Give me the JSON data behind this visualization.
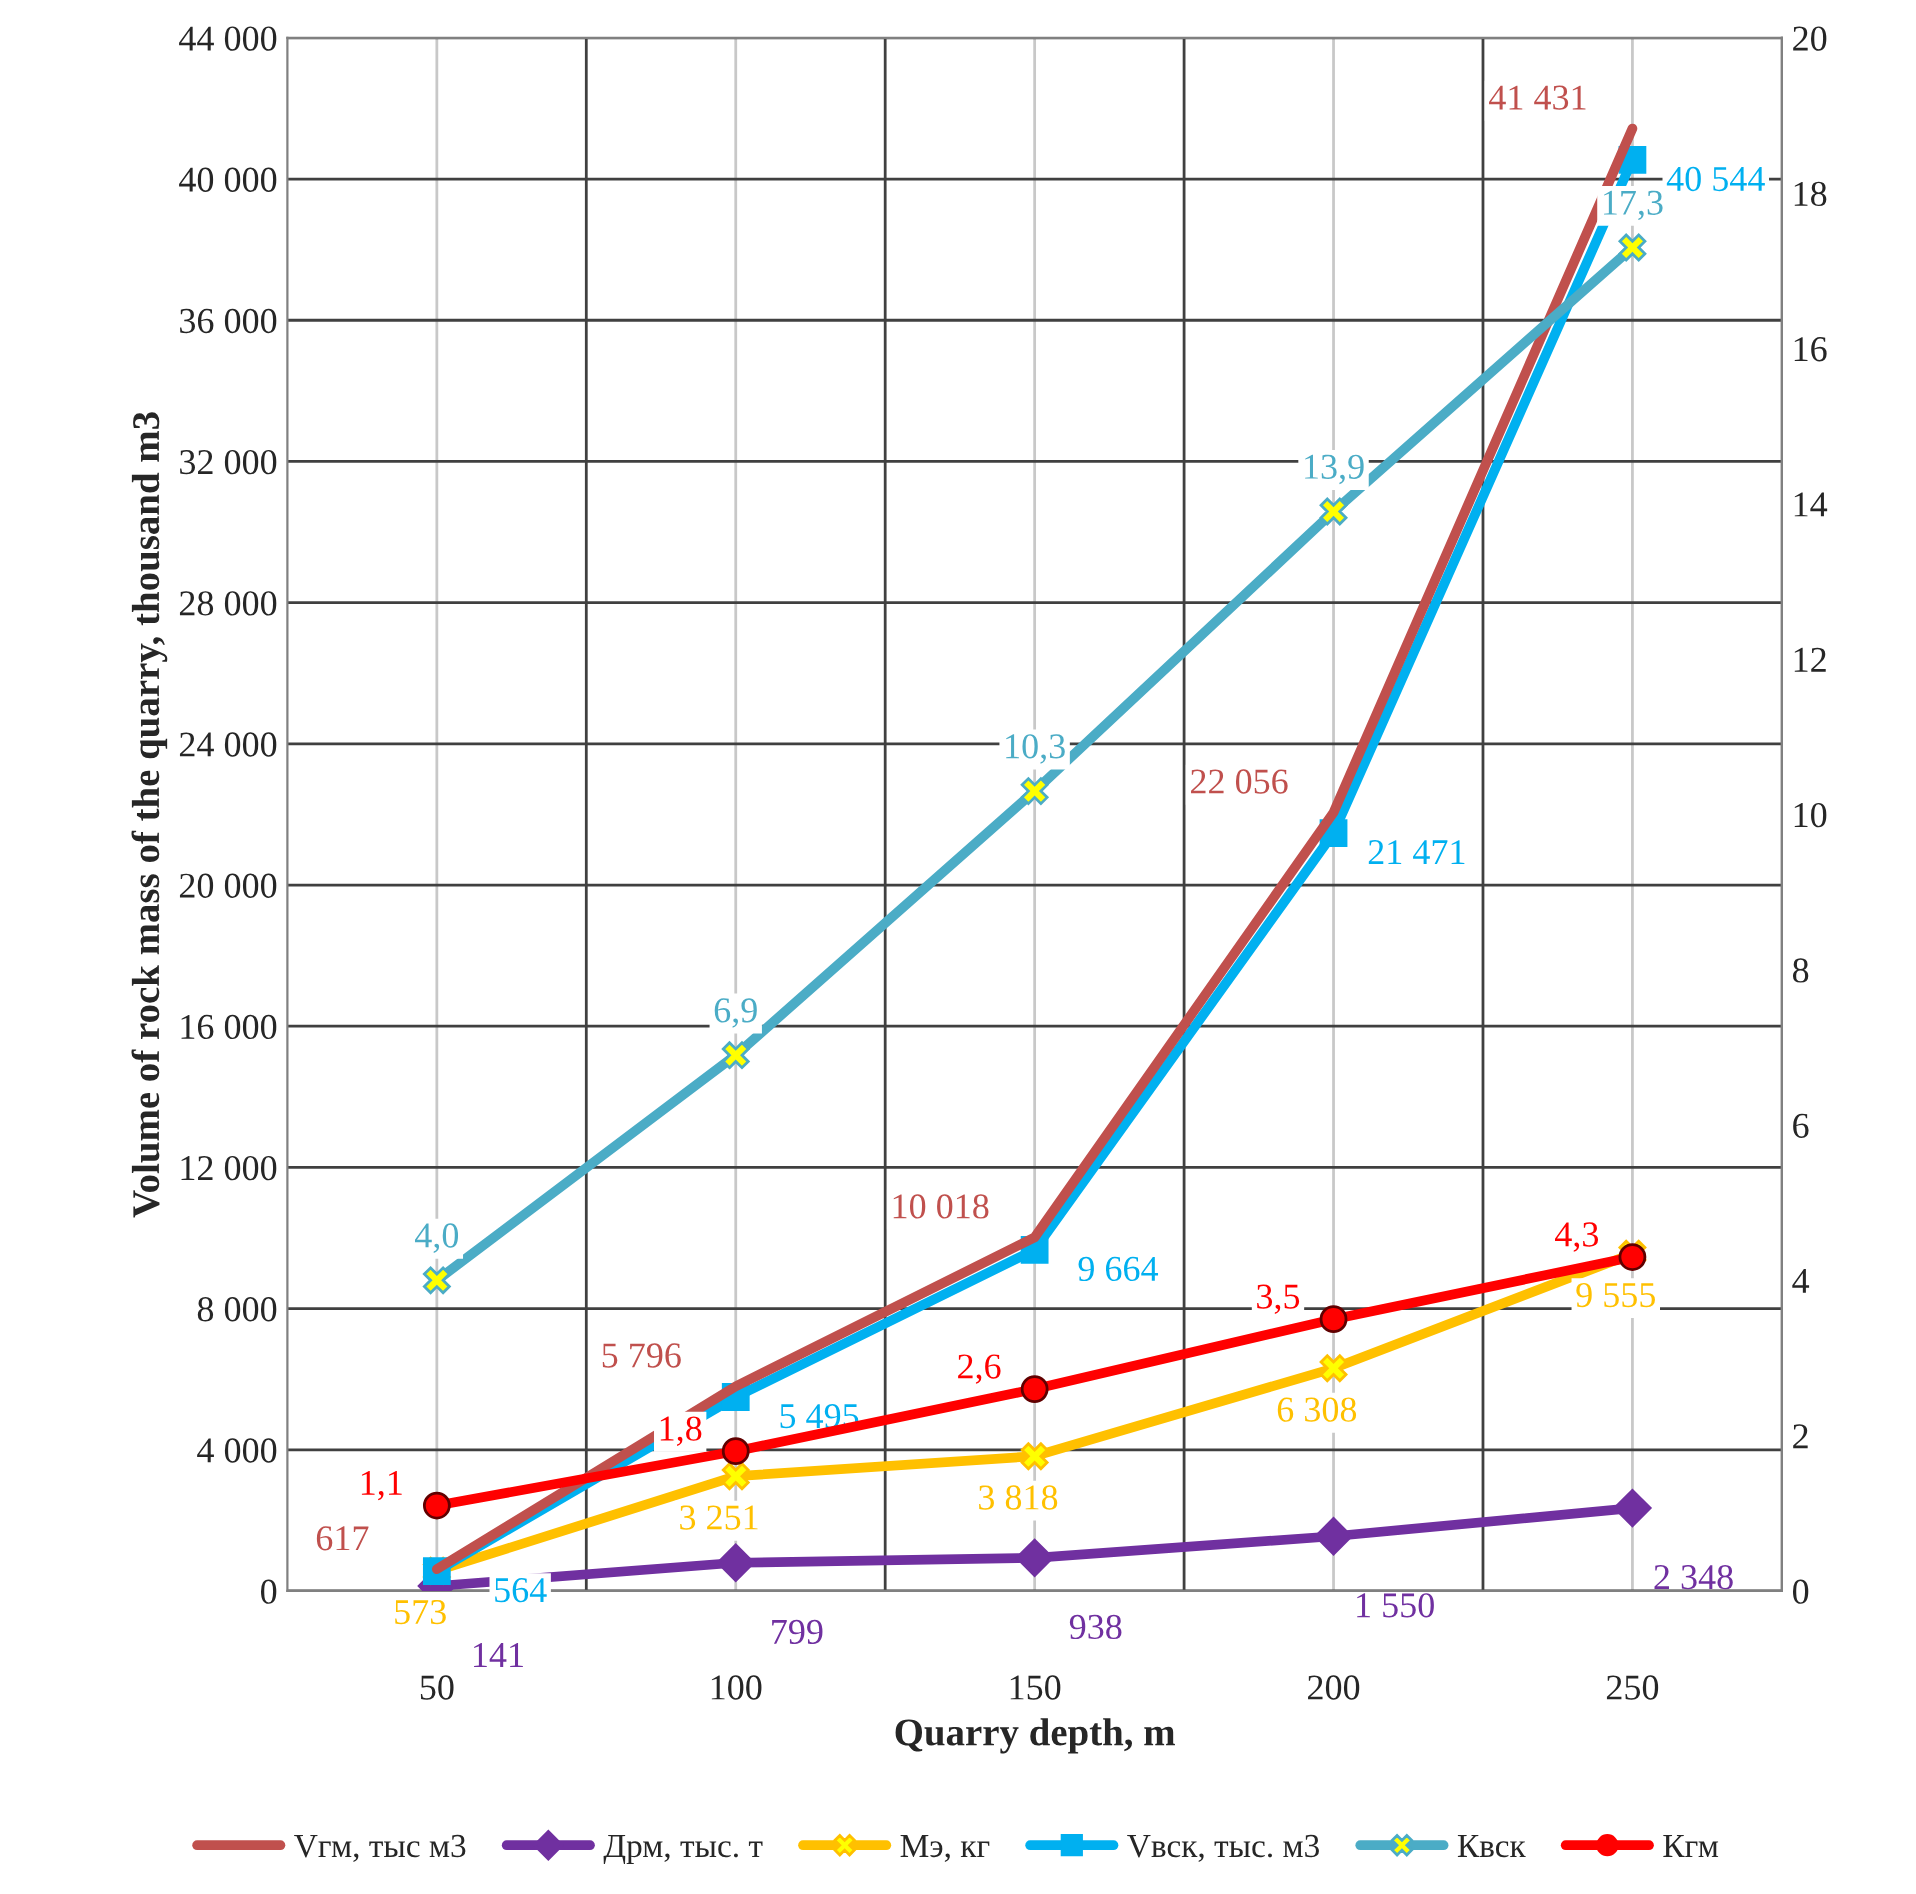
{
  "chart_data": {
    "type": "line",
    "xlabel": "Quarry depth, m",
    "ylabel": "Volume of rock mass of the quarry, thousand m3",
    "categories": [
      "50",
      "100",
      "150",
      "200",
      "250"
    ],
    "series": [
      {
        "name": "Vгм, тыс м3",
        "color": "#c0504d",
        "marker": "none",
        "values": [
          617,
          5796,
          10018,
          22056,
          41431
        ],
        "value_labels": [
          "617",
          "5 796",
          "10 018",
          "22 056",
          "41 431"
        ]
      },
      {
        "name": "Дрм, тыс. т",
        "color": "#7030a0",
        "marker": "diamond",
        "values": [
          141,
          799,
          938,
          1550,
          2348
        ],
        "value_labels": [
          "141",
          "799",
          "938",
          "1 550",
          "2 348"
        ]
      },
      {
        "name": "Мэ, кг",
        "color": "#ffc000",
        "marker": "cross",
        "values": [
          573,
          3251,
          3818,
          6308,
          9555
        ],
        "value_labels": [
          "573",
          "3 251",
          "3 818",
          "6 308",
          "9 555"
        ]
      },
      {
        "name": "Vвск, тыс. м3",
        "color": "#00b0f0",
        "marker": "square",
        "values": [
          564,
          5495,
          9664,
          21471,
          40544
        ],
        "value_labels": [
          "564",
          "5 495",
          "9 664",
          "21 471",
          "40 544"
        ]
      },
      {
        "name": "Квск",
        "color": "#4bacc6",
        "marker": "cross",
        "axis": "y2",
        "values": [
          4.0,
          6.9,
          10.3,
          13.9,
          17.3
        ],
        "value_labels": [
          "4,0",
          "6,9",
          "10,3",
          "13,9",
          "17,3"
        ]
      },
      {
        "name": "Кгм",
        "color": "#ff0000",
        "marker": "circle",
        "axis": "y2",
        "values": [
          1.1,
          1.8,
          2.6,
          3.5,
          4.3
        ],
        "value_labels": [
          "1,1",
          "1,8",
          "2,6",
          "3,5",
          "4,3"
        ]
      }
    ],
    "ylim": [
      0,
      44000
    ],
    "yticks": [
      {
        "value": 0,
        "label": "0"
      },
      {
        "value": 4000,
        "label": "4 000"
      },
      {
        "value": 8000,
        "label": "8 000"
      },
      {
        "value": 12000,
        "label": "12 000"
      },
      {
        "value": 16000,
        "label": "16 000"
      },
      {
        "value": 20000,
        "label": "20 000"
      },
      {
        "value": 24000,
        "label": "24 000"
      },
      {
        "value": 28000,
        "label": "28 000"
      },
      {
        "value": 32000,
        "label": "32 000"
      },
      {
        "value": 36000,
        "label": "36 000"
      },
      {
        "value": 40000,
        "label": "40 000"
      },
      {
        "value": 44000,
        "label": "44 000"
      }
    ],
    "y2lim": [
      0,
      20
    ],
    "y2ticks": [
      0,
      2,
      4,
      6,
      8,
      10,
      12,
      14,
      16,
      18,
      20
    ],
    "grid": true,
    "legend": "bottom"
  }
}
